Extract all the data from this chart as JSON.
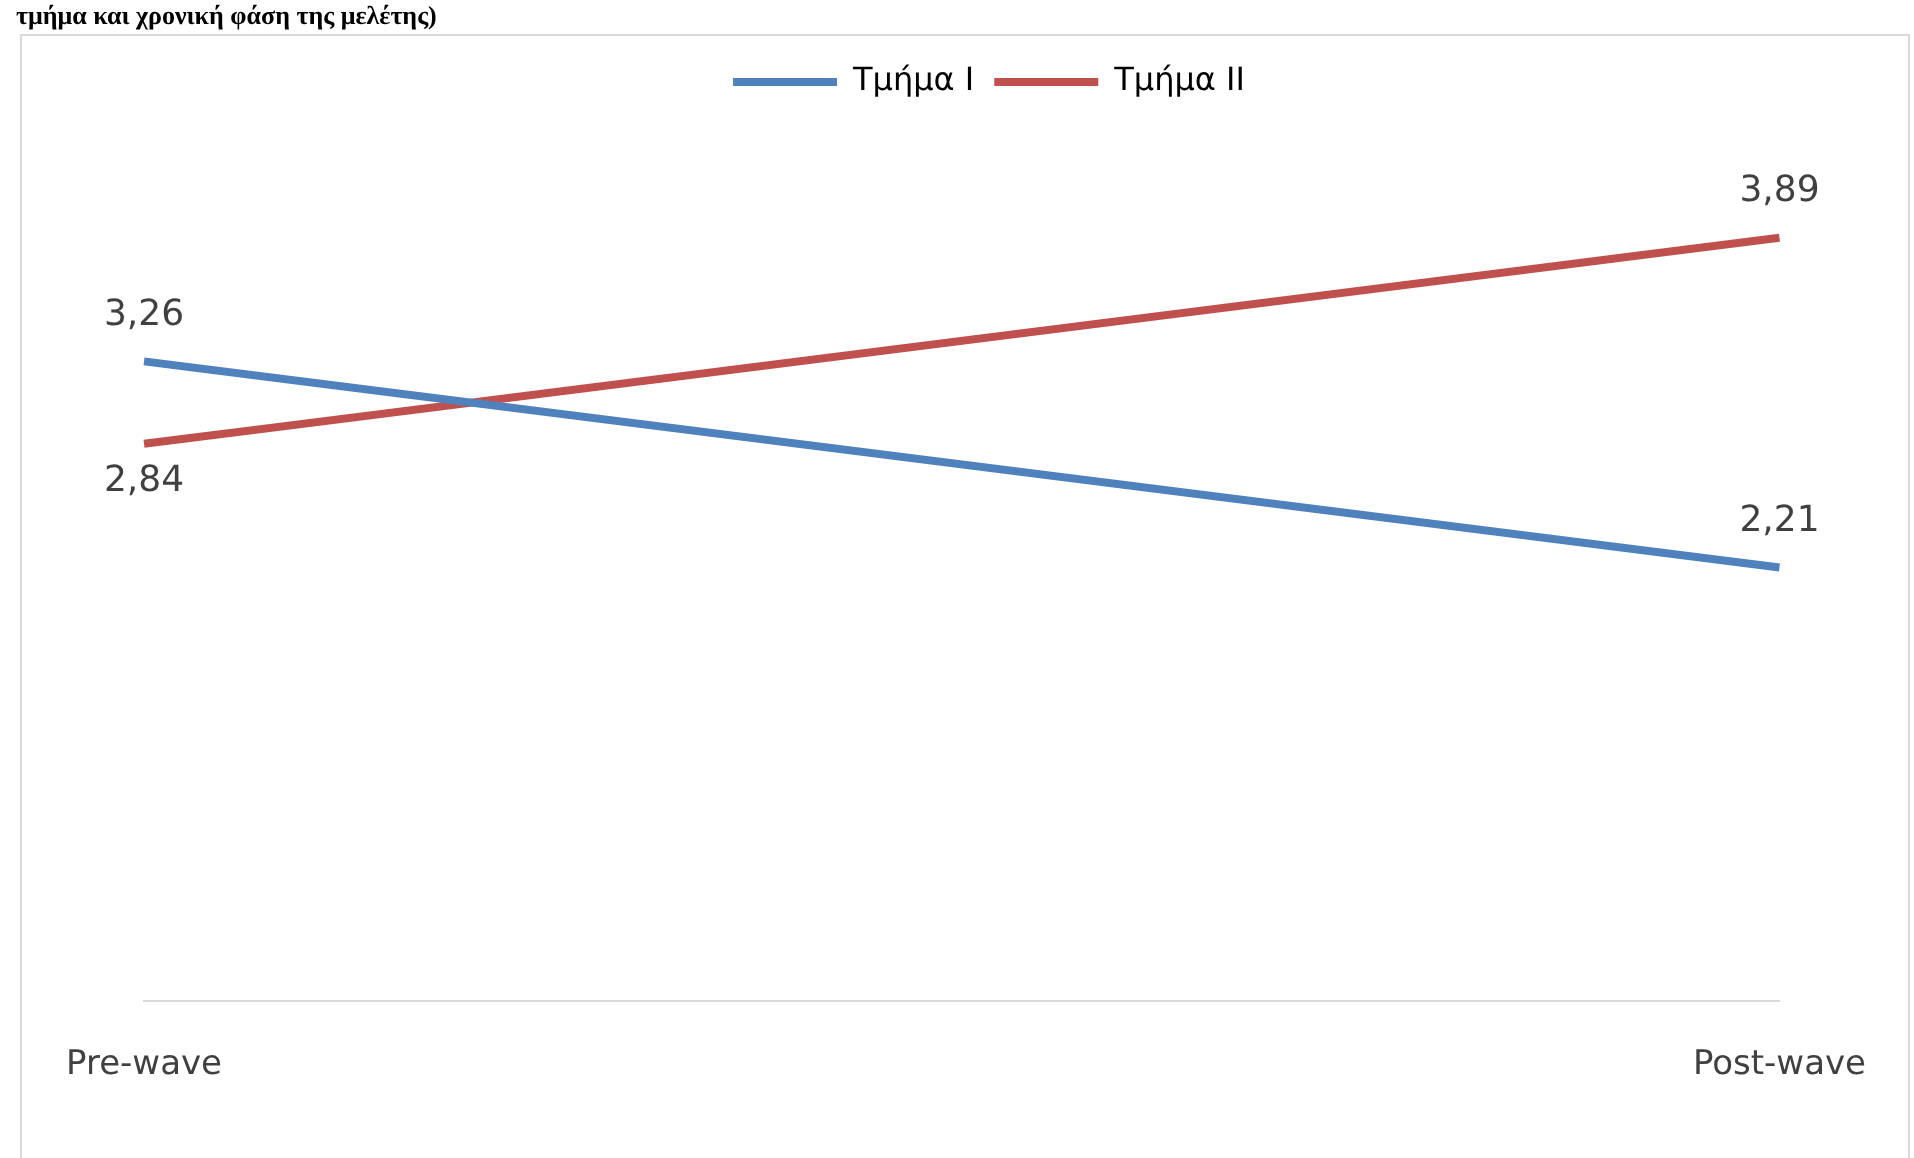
{
  "chart_data": {
    "type": "line",
    "title": "τμήμα και χρονική φάση της μελέτης)",
    "categories": [
      "Pre-wave",
      "Post-wave"
    ],
    "series": [
      {
        "name": "Τμήμα I",
        "color": "#4f81bd",
        "values": [
          3.26,
          2.21
        ],
        "value_labels": [
          "3,26",
          "2,21"
        ]
      },
      {
        "name": "Τμήμα II",
        "color": "#c0504d",
        "values": [
          2.84,
          3.89
        ],
        "value_labels": [
          "2,84",
          "3,89"
        ]
      }
    ],
    "tick_labels": "x",
    "grid": false,
    "legend": "top",
    "marker": "none",
    "line_style": "solid"
  }
}
